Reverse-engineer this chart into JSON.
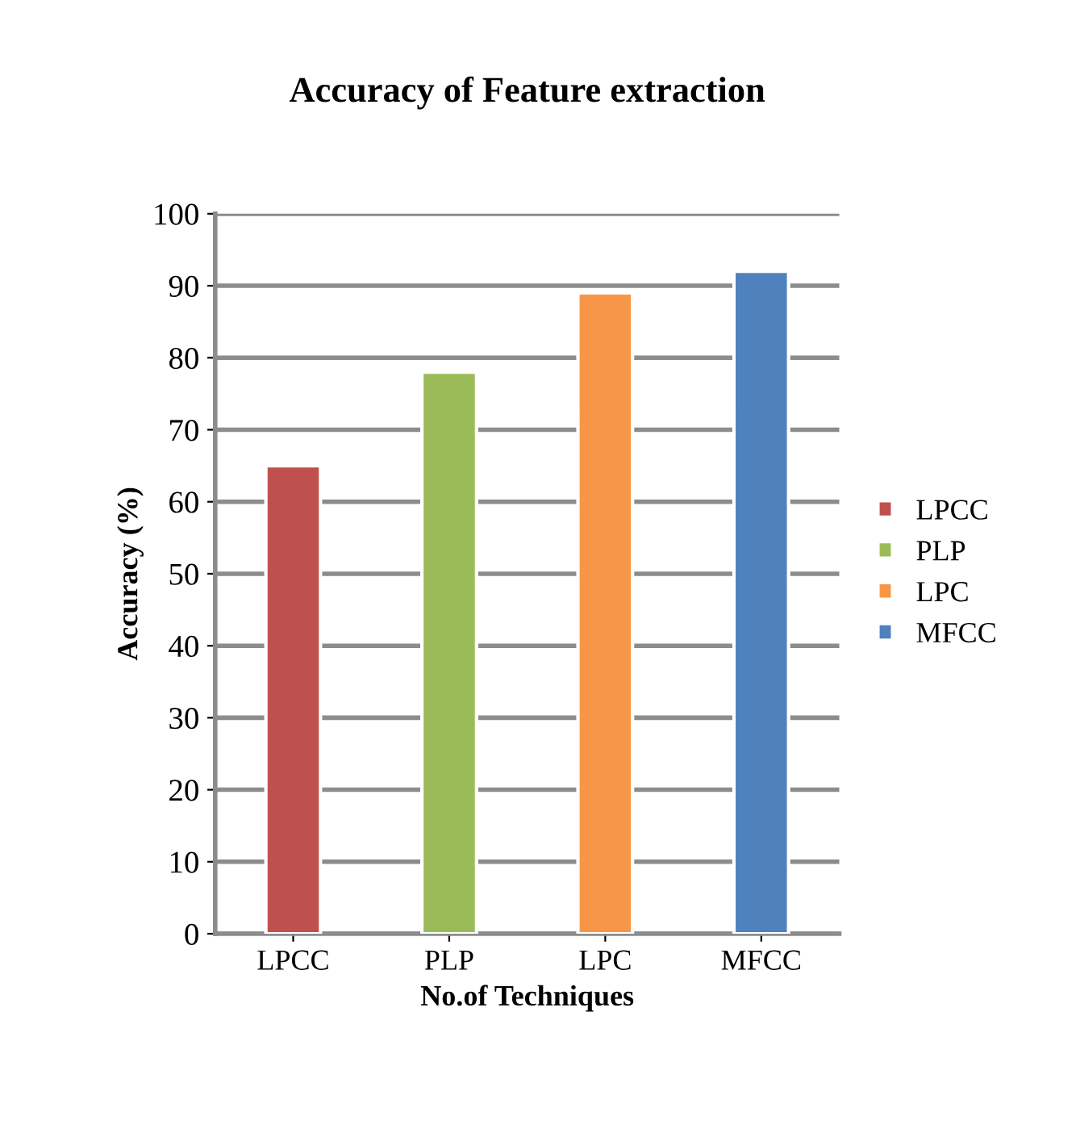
{
  "chart_data": {
    "type": "bar",
    "title": "Accuracy of Feature extraction",
    "xlabel": "No.of Techniques",
    "ylabel": "Accuracy (%)",
    "categories": [
      "LPCC",
      "PLP",
      "LPC",
      "MFCC"
    ],
    "stacked": true,
    "series": [
      {
        "name": "LPCC",
        "color": "#c0504d",
        "values": [
          65,
          null,
          null,
          null
        ]
      },
      {
        "name": "PLP",
        "color": "#9bbb59",
        "values": [
          null,
          78,
          null,
          null
        ]
      },
      {
        "name": "LPC",
        "color": "#f79646",
        "values": [
          null,
          null,
          89,
          null
        ]
      },
      {
        "name": "MFCC",
        "color": "#4f81bd",
        "values": [
          null,
          null,
          null,
          92
        ]
      }
    ],
    "ylim": [
      0,
      100
    ],
    "yticks": [
      0,
      10,
      20,
      30,
      40,
      50,
      60,
      70,
      80,
      90,
      100
    ],
    "grid": "y",
    "legend": "right"
  }
}
